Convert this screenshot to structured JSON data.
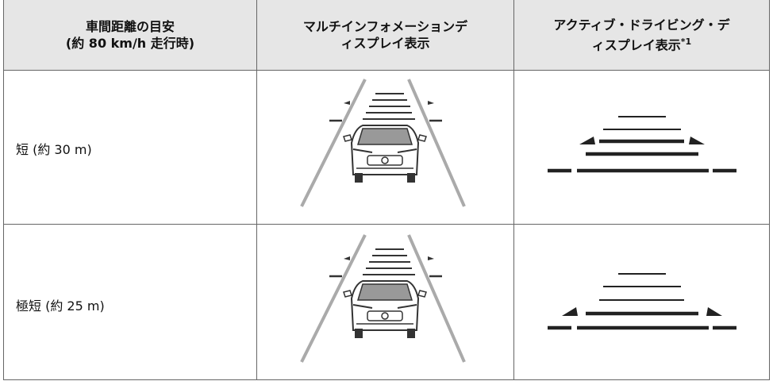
{
  "table": {
    "header": [
      {
        "lines": [
          "車間距離の目安",
          "(約 80 km/h 走行時)"
        ]
      },
      {
        "lines": [
          "マルチインフォメーションデ",
          "ィスプレイ表示"
        ]
      },
      {
        "lines": [
          "アクティブ・ドライビング・デ",
          "ィスプレイ表示"
        ],
        "note": "*1"
      }
    ],
    "rows": [
      [
        "短 (約 30 m)"
      ],
      [
        "極短 (約 25 m)"
      ]
    ]
  }
}
